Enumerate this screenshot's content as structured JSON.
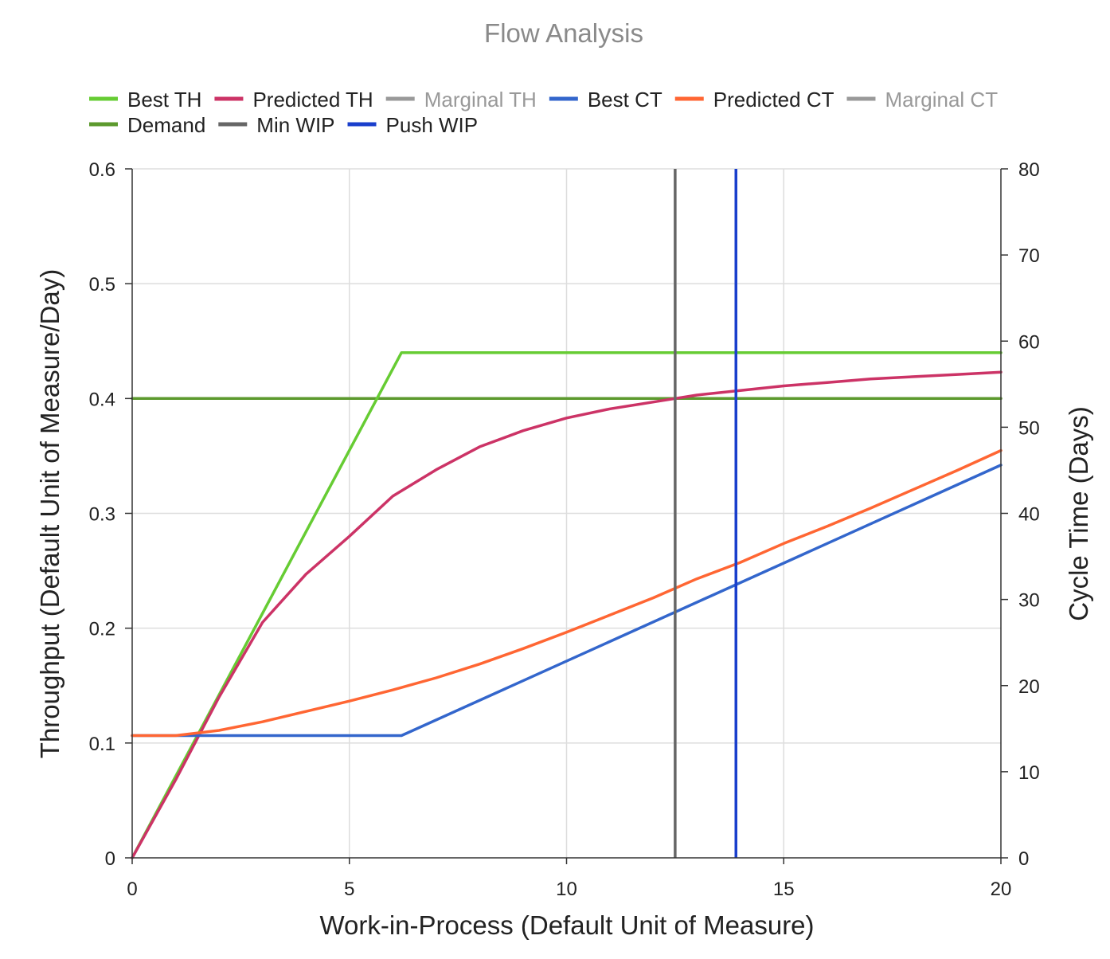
{
  "chart_data": {
    "type": "line",
    "title": "Flow Analysis",
    "xlabel": "Work-in-Process (Default Unit of Measure)",
    "ylabel_left": "Throughput (Default Unit of Measure/Day)",
    "ylabel_right": "Cycle Time (Days)",
    "xlim": [
      0,
      20
    ],
    "ylim_left": [
      0,
      0.6
    ],
    "ylim_right": [
      0,
      80
    ],
    "x_ticks": [
      "0",
      "5",
      "10",
      "15",
      "20"
    ],
    "y_left_ticks": [
      "0",
      "0.1",
      "0.2",
      "0.3",
      "0.4",
      "0.5",
      "0.6"
    ],
    "y_right_ticks": [
      "0",
      "10",
      "20",
      "30",
      "40",
      "50",
      "60",
      "70",
      "80"
    ],
    "grid": true,
    "legend_position": "top",
    "legend": [
      {
        "name": "Best TH",
        "color": "#66cc33",
        "muted": false
      },
      {
        "name": "Predicted TH",
        "color": "#cc3366",
        "muted": false
      },
      {
        "name": "Marginal TH",
        "color": "#999999",
        "muted": true
      },
      {
        "name": "Best CT",
        "color": "#3366cc",
        "muted": false
      },
      {
        "name": "Predicted CT",
        "color": "#ff6633",
        "muted": false
      },
      {
        "name": "Marginal CT",
        "color": "#999999",
        "muted": true
      },
      {
        "name": "Demand",
        "color": "#5c9a2e",
        "muted": false
      },
      {
        "name": "Min WIP",
        "color": "#666666",
        "muted": false
      },
      {
        "name": "Push WIP",
        "color": "#1a3fcc",
        "muted": false
      }
    ],
    "series": [
      {
        "name": "Demand",
        "axis": "left",
        "color": "#5c9a2e",
        "points": [
          [
            0,
            0.4
          ],
          [
            20,
            0.4
          ]
        ]
      },
      {
        "name": "Best TH",
        "axis": "left",
        "color": "#66cc33",
        "points": [
          [
            0,
            0
          ],
          [
            6.2,
            0.44
          ],
          [
            20,
            0.44
          ]
        ]
      },
      {
        "name": "Predicted TH",
        "axis": "left",
        "color": "#cc3366",
        "points": [
          [
            0,
            0
          ],
          [
            1,
            0.068
          ],
          [
            2,
            0.14
          ],
          [
            3,
            0.205
          ],
          [
            4,
            0.247
          ],
          [
            5,
            0.28
          ],
          [
            6,
            0.315
          ],
          [
            7,
            0.338
          ],
          [
            8,
            0.358
          ],
          [
            9,
            0.372
          ],
          [
            10,
            0.383
          ],
          [
            11,
            0.391
          ],
          [
            12,
            0.397
          ],
          [
            12.5,
            0.4
          ],
          [
            13,
            0.403
          ],
          [
            14,
            0.407
          ],
          [
            15,
            0.411
          ],
          [
            16,
            0.414
          ],
          [
            17,
            0.417
          ],
          [
            18,
            0.419
          ],
          [
            19,
            0.421
          ],
          [
            20,
            0.423
          ]
        ]
      },
      {
        "name": "Best CT",
        "axis": "right",
        "color": "#3366cc",
        "points": [
          [
            0,
            14.2
          ],
          [
            6.2,
            14.2
          ],
          [
            20,
            45.6
          ]
        ]
      },
      {
        "name": "Predicted CT",
        "axis": "right",
        "color": "#ff6633",
        "points": [
          [
            0,
            14.2
          ],
          [
            1,
            14.2
          ],
          [
            2,
            14.8
          ],
          [
            3,
            15.8
          ],
          [
            4,
            17.0
          ],
          [
            5,
            18.2
          ],
          [
            6,
            19.5
          ],
          [
            7,
            20.9
          ],
          [
            8,
            22.5
          ],
          [
            9,
            24.3
          ],
          [
            10,
            26.2
          ],
          [
            11,
            28.2
          ],
          [
            12,
            30.2
          ],
          [
            13,
            32.4
          ],
          [
            14,
            34.3
          ],
          [
            15,
            36.5
          ],
          [
            16,
            38.5
          ],
          [
            17,
            40.6
          ],
          [
            18,
            42.8
          ],
          [
            19,
            45.0
          ],
          [
            20,
            47.3
          ]
        ]
      },
      {
        "name": "Min WIP",
        "axis": "vertical",
        "color": "#666666",
        "x": 12.5
      },
      {
        "name": "Push WIP",
        "axis": "vertical",
        "color": "#1a3fcc",
        "x": 13.9
      }
    ]
  }
}
